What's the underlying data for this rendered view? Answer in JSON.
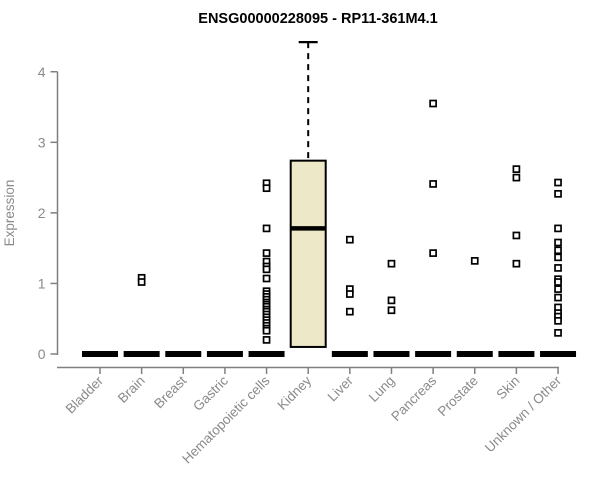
{
  "chart_data": {
    "type": "boxplot",
    "title": "ENSG00000228095 - RP11-361M4.1",
    "ylabel": "Expression",
    "ylim": [
      0,
      4.45
    ],
    "yticks": [
      0,
      1,
      2,
      3,
      4
    ],
    "grid": false,
    "categories": [
      "Bladder",
      "Brain",
      "Breast",
      "Gastric",
      "Hematopoietic cells",
      "Kidney",
      "Liver",
      "Lung",
      "Pancreas",
      "Prostate",
      "Skin",
      "Unknown / Other"
    ],
    "boxes": [
      {
        "category": "Bladder",
        "q1": 0,
        "median": 0,
        "q3": 0,
        "whisker_low": 0,
        "whisker_high": 0
      },
      {
        "category": "Brain",
        "q1": 0,
        "median": 0,
        "q3": 0,
        "whisker_low": 0,
        "whisker_high": 0
      },
      {
        "category": "Breast",
        "q1": 0,
        "median": 0,
        "q3": 0,
        "whisker_low": 0,
        "whisker_high": 0
      },
      {
        "category": "Gastric",
        "q1": 0,
        "median": 0,
        "q3": 0,
        "whisker_low": 0,
        "whisker_high": 0
      },
      {
        "category": "Hematopoietic cells",
        "q1": 0,
        "median": 0,
        "q3": 0,
        "whisker_low": 0,
        "whisker_high": 0
      },
      {
        "category": "Kidney",
        "q1": 0.1,
        "median": 1.78,
        "q3": 2.74,
        "whisker_low": 0.1,
        "whisker_high": 4.42
      },
      {
        "category": "Liver",
        "q1": 0,
        "median": 0,
        "q3": 0,
        "whisker_low": 0,
        "whisker_high": 0
      },
      {
        "category": "Lung",
        "q1": 0,
        "median": 0,
        "q3": 0,
        "whisker_low": 0,
        "whisker_high": 0
      },
      {
        "category": "Pancreas",
        "q1": 0,
        "median": 0,
        "q3": 0,
        "whisker_low": 0,
        "whisker_high": 0
      },
      {
        "category": "Prostate",
        "q1": 0,
        "median": 0,
        "q3": 0,
        "whisker_low": 0,
        "whisker_high": 0
      },
      {
        "category": "Skin",
        "q1": 0,
        "median": 0,
        "q3": 0,
        "whisker_low": 0,
        "whisker_high": 0
      },
      {
        "category": "Unknown / Other",
        "q1": 0,
        "median": 0,
        "q3": 0,
        "whisker_low": 0,
        "whisker_high": 0
      }
    ],
    "outliers": [
      {
        "category": "Brain",
        "values": [
          1.08,
          1.02
        ]
      },
      {
        "category": "Hematopoietic cells",
        "values": [
          2.42,
          2.35,
          1.78,
          1.43,
          1.31,
          1.24,
          1.2,
          1.07,
          0.89,
          0.85,
          0.81,
          0.77,
          0.73,
          0.7,
          0.67,
          0.63,
          0.6,
          0.56,
          0.52,
          0.48,
          0.44,
          0.4,
          0.36,
          0.33,
          0.2
        ]
      },
      {
        "category": "Liver",
        "values": [
          1.62,
          0.92,
          0.85,
          0.6
        ]
      },
      {
        "category": "Lung",
        "values": [
          1.28,
          0.76,
          0.62
        ]
      },
      {
        "category": "Pancreas",
        "values": [
          3.55,
          2.41,
          1.43
        ]
      },
      {
        "category": "Prostate",
        "values": [
          1.32
        ]
      },
      {
        "category": "Skin",
        "values": [
          2.62,
          2.5,
          1.68,
          1.28
        ]
      },
      {
        "category": "Unknown / Other",
        "values": [
          2.43,
          2.27,
          1.78,
          1.58,
          1.47,
          1.37,
          1.22,
          1.06,
          1.02,
          0.92,
          0.8,
          0.66,
          0.58,
          0.53,
          0.47,
          0.3
        ]
      }
    ],
    "colors": {
      "box_fill": "#EDE8C7",
      "box_border": "#000000",
      "median": "#000000",
      "point": "#000000",
      "axis": "#808080",
      "tick_label": "#8A8A8A",
      "title": "#000000"
    }
  }
}
